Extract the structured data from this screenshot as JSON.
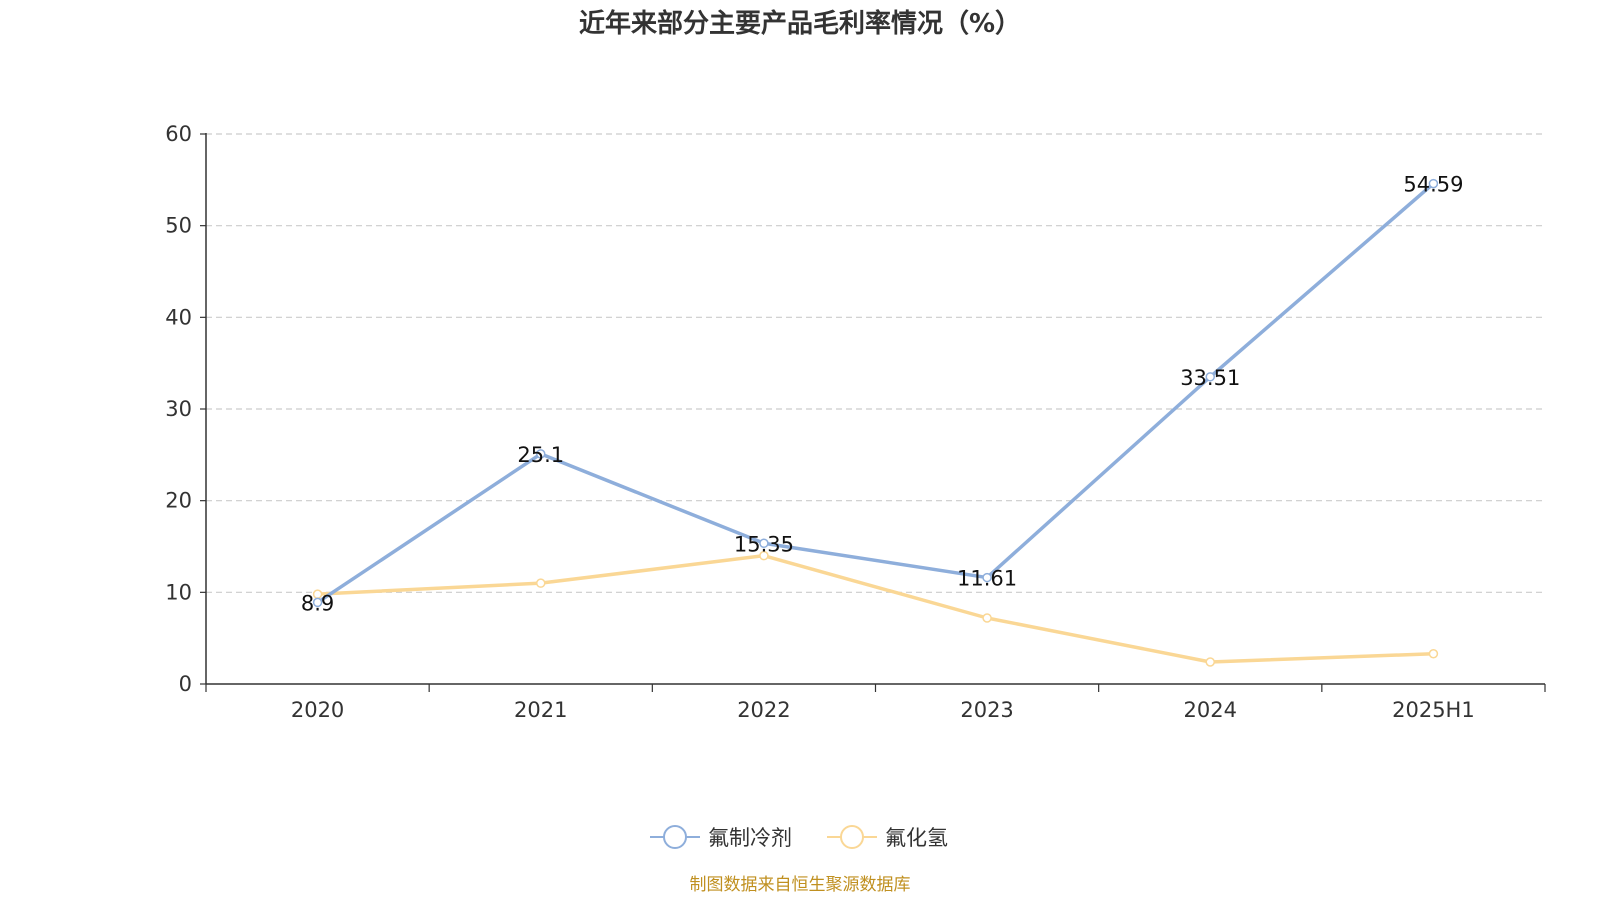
{
  "chart_data": {
    "type": "line",
    "title": "近年来部分主要产品毛利率情况（%）",
    "categories": [
      "2020",
      "2021",
      "2022",
      "2023",
      "2024",
      "2025H1"
    ],
    "ylim": [
      0,
      60
    ],
    "yticks": [
      0,
      10,
      20,
      30,
      40,
      50,
      60
    ],
    "grid": true,
    "legend_position": "bottom-center",
    "series": [
      {
        "name": "氟制冷剂",
        "color": "#8eaedb",
        "values": [
          8.9,
          25.1,
          15.35,
          11.61,
          33.51,
          54.59
        ],
        "labels": [
          "8.9",
          "25.1",
          "15.35",
          "11.61",
          "33.51",
          "54.59"
        ]
      },
      {
        "name": "氟化氢",
        "color": "#fad795",
        "values": [
          9.8,
          11.0,
          14.0,
          7.2,
          2.4,
          3.3
        ],
        "labels": []
      }
    ],
    "source": "制图数据来自恒生聚源数据库"
  }
}
